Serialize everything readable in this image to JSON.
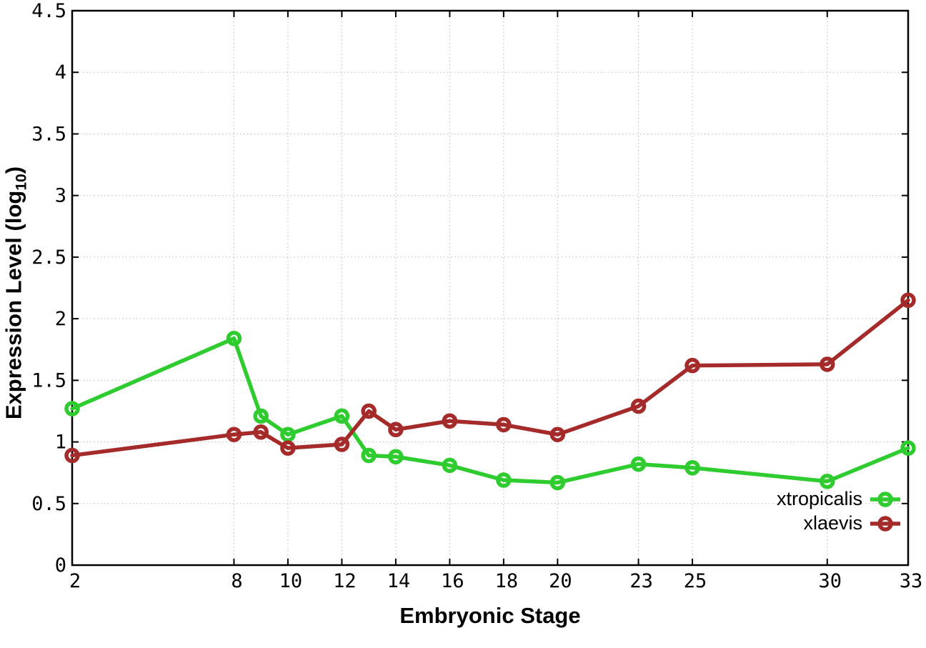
{
  "chart_data": {
    "type": "line",
    "title": "",
    "xlabel": "Embryonic Stage",
    "ylabel": "Expression Level (log₁₀)",
    "ylabel_parts": {
      "pre": "Expression Level (log",
      "sub": "10",
      "post": ")"
    },
    "x": [
      2,
      8,
      9,
      10,
      12,
      13,
      14,
      16,
      18,
      20,
      23,
      25,
      30,
      33
    ],
    "series": [
      {
        "name": "xtropicalis",
        "color": "#2ecc2e",
        "values": [
          1.27,
          1.84,
          1.21,
          1.06,
          1.21,
          0.89,
          0.88,
          0.81,
          0.69,
          0.67,
          0.82,
          0.79,
          0.68,
          0.95
        ]
      },
      {
        "name": "xlaevis",
        "color": "#a52a2a",
        "values": [
          0.89,
          1.06,
          1.08,
          0.95,
          0.98,
          1.25,
          1.1,
          1.17,
          1.14,
          1.06,
          1.29,
          1.62,
          1.63,
          2.15
        ]
      }
    ],
    "x_tick_values": [
      2,
      8,
      10,
      12,
      14,
      16,
      18,
      20,
      23,
      25,
      30,
      33
    ],
    "x_tick_labels": [
      "2",
      "8",
      "10",
      "12",
      "14",
      "16",
      "18",
      "20",
      "23",
      "25",
      "30",
      "33"
    ],
    "y_tick_values": [
      0,
      0.5,
      1,
      1.5,
      2,
      2.5,
      3,
      3.5,
      4,
      4.5
    ],
    "y_tick_labels": [
      "0",
      "0.5",
      "1",
      "1.5",
      "2",
      "2.5",
      "3",
      "3.5",
      "4",
      "4.5"
    ],
    "xlim": [
      2,
      33
    ],
    "ylim": [
      0,
      4.5
    ],
    "grid": true,
    "legend_position": "bottom-right-inside",
    "axis_color": "#000000",
    "grid_color": "#b8b8b8",
    "background": "#ffffff"
  }
}
